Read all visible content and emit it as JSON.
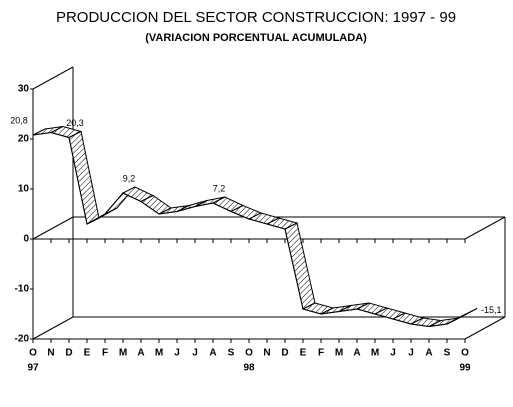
{
  "chart_data": {
    "type": "ribbon-line",
    "title": "PRODUCCION DEL SECTOR CONSTRUCCION: 1997 - 99",
    "subtitle": "(VARIACION PORCENTUAL ACUMULADA)",
    "categories": [
      "O",
      "N",
      "D",
      "E",
      "F",
      "M",
      "A",
      "M",
      "J",
      "J",
      "A",
      "S",
      "O",
      "N",
      "D",
      "E",
      "F",
      "M",
      "A",
      "M",
      "J",
      "J",
      "A",
      "S",
      "O"
    ],
    "years": [
      "97",
      null,
      null,
      null,
      null,
      null,
      null,
      null,
      null,
      null,
      null,
      null,
      "98",
      null,
      null,
      null,
      null,
      null,
      null,
      null,
      null,
      null,
      null,
      null,
      "99"
    ],
    "values": [
      20.8,
      21.3,
      20.3,
      3,
      5,
      9.2,
      7.5,
      5,
      5.5,
      6.5,
      7.2,
      5.5,
      4,
      3,
      2,
      -14,
      -15,
      -14.5,
      -14,
      -15,
      -16,
      -17,
      -17.5,
      -17,
      -15.1
    ],
    "value_labels": [
      "20,8",
      null,
      "20,3",
      null,
      null,
      "9,2",
      null,
      null,
      null,
      null,
      "7,2",
      null,
      null,
      null,
      null,
      null,
      null,
      null,
      null,
      null,
      null,
      null,
      null,
      null,
      "-15,1"
    ],
    "ylim": [
      -20,
      30
    ],
    "yticks": [
      30,
      20,
      10,
      0,
      -10,
      -20
    ],
    "color": "#000000"
  }
}
